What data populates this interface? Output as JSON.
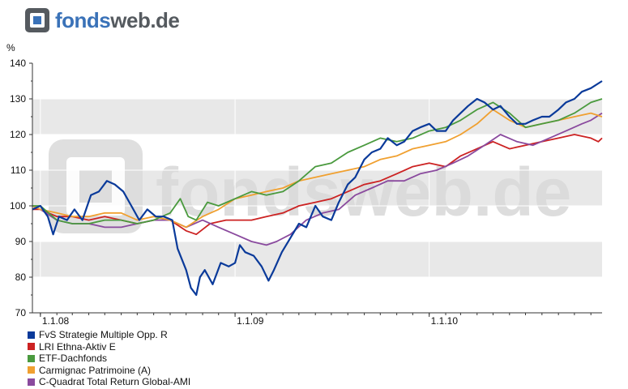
{
  "brand": {
    "part1": "fonds",
    "part2": "web.de",
    "watermark": "fondsweb.de"
  },
  "chart_data": {
    "type": "line",
    "ylabel": "%",
    "ylim": [
      70,
      140
    ],
    "yticks": [
      70,
      80,
      90,
      100,
      110,
      120,
      130,
      140
    ],
    "xlim": [
      "2007-12-17",
      "2010-11-22"
    ],
    "xticks": [
      {
        "label": "1.1.08",
        "date": "2008-01-01"
      },
      {
        "label": "1.1.09",
        "date": "2009-01-01"
      },
      {
        "label": "1.1.10",
        "date": "2010-01-01"
      }
    ],
    "grid": true,
    "legend_position": "bottom",
    "series": [
      {
        "name": "FvS Strategie Multiple Opp. R",
        "color": "#0a3a9a",
        "points": [
          [
            "2007-12-17",
            99
          ],
          [
            "2008-01-01",
            100
          ],
          [
            "2008-01-15",
            97
          ],
          [
            "2008-01-25",
            92
          ],
          [
            "2008-02-05",
            97
          ],
          [
            "2008-02-20",
            96
          ],
          [
            "2008-03-05",
            99
          ],
          [
            "2008-03-20",
            96
          ],
          [
            "2008-04-05",
            103
          ],
          [
            "2008-04-20",
            104
          ],
          [
            "2008-05-05",
            107
          ],
          [
            "2008-05-20",
            106
          ],
          [
            "2008-06-05",
            104
          ],
          [
            "2008-06-20",
            100
          ],
          [
            "2008-07-05",
            96
          ],
          [
            "2008-07-20",
            99
          ],
          [
            "2008-08-05",
            97
          ],
          [
            "2008-08-20",
            97
          ],
          [
            "2008-09-05",
            96
          ],
          [
            "2008-09-15",
            88
          ],
          [
            "2008-10-01",
            82
          ],
          [
            "2008-10-10",
            77
          ],
          [
            "2008-10-20",
            75
          ],
          [
            "2008-10-27",
            80
          ],
          [
            "2008-11-05",
            82
          ],
          [
            "2008-11-20",
            78
          ],
          [
            "2008-12-05",
            84
          ],
          [
            "2008-12-20",
            83
          ],
          [
            "2009-01-01",
            84
          ],
          [
            "2009-01-10",
            89
          ],
          [
            "2009-01-20",
            87
          ],
          [
            "2009-02-05",
            86
          ],
          [
            "2009-02-20",
            83
          ],
          [
            "2009-03-05",
            79
          ],
          [
            "2009-03-15",
            82
          ],
          [
            "2009-03-30",
            87
          ],
          [
            "2009-04-15",
            91
          ],
          [
            "2009-05-01",
            95
          ],
          [
            "2009-05-15",
            94
          ],
          [
            "2009-06-01",
            100
          ],
          [
            "2009-06-15",
            97
          ],
          [
            "2009-07-01",
            96
          ],
          [
            "2009-07-15",
            101
          ],
          [
            "2009-08-01",
            106
          ],
          [
            "2009-08-15",
            108
          ],
          [
            "2009-09-01",
            113
          ],
          [
            "2009-09-15",
            115
          ],
          [
            "2009-10-01",
            116
          ],
          [
            "2009-10-15",
            119
          ],
          [
            "2009-11-01",
            117
          ],
          [
            "2009-11-15",
            118
          ],
          [
            "2009-12-01",
            121
          ],
          [
            "2009-12-15",
            122
          ],
          [
            "2010-01-01",
            123
          ],
          [
            "2010-01-15",
            121
          ],
          [
            "2010-02-01",
            121
          ],
          [
            "2010-02-15",
            124
          ],
          [
            "2010-03-01",
            126
          ],
          [
            "2010-03-15",
            128
          ],
          [
            "2010-04-01",
            130
          ],
          [
            "2010-04-15",
            129
          ],
          [
            "2010-05-01",
            127
          ],
          [
            "2010-05-15",
            128
          ],
          [
            "2010-06-01",
            125
          ],
          [
            "2010-06-15",
            123
          ],
          [
            "2010-07-01",
            123
          ],
          [
            "2010-07-15",
            124
          ],
          [
            "2010-08-01",
            125
          ],
          [
            "2010-08-15",
            125
          ],
          [
            "2010-09-01",
            127
          ],
          [
            "2010-09-15",
            129
          ],
          [
            "2010-10-01",
            130
          ],
          [
            "2010-10-15",
            132
          ],
          [
            "2010-11-01",
            133
          ],
          [
            "2010-11-22",
            135
          ]
        ]
      },
      {
        "name": "LRI Ethna-Aktiv E",
        "color": "#cc2222",
        "points": [
          [
            "2007-12-17",
            99
          ],
          [
            "2008-01-01",
            99
          ],
          [
            "2008-02-01",
            97
          ],
          [
            "2008-03-01",
            97
          ],
          [
            "2008-04-01",
            96
          ],
          [
            "2008-05-01",
            97
          ],
          [
            "2008-06-01",
            96
          ],
          [
            "2008-07-01",
            95
          ],
          [
            "2008-08-01",
            96
          ],
          [
            "2008-09-01",
            96
          ],
          [
            "2008-10-01",
            93
          ],
          [
            "2008-10-20",
            92
          ],
          [
            "2008-11-15",
            95
          ],
          [
            "2008-12-15",
            96
          ],
          [
            "2009-01-01",
            96
          ],
          [
            "2009-02-01",
            96
          ],
          [
            "2009-03-01",
            97
          ],
          [
            "2009-04-01",
            98
          ],
          [
            "2009-05-01",
            100
          ],
          [
            "2009-06-01",
            101
          ],
          [
            "2009-07-01",
            102
          ],
          [
            "2009-08-01",
            104
          ],
          [
            "2009-09-01",
            106
          ],
          [
            "2009-10-01",
            107
          ],
          [
            "2009-11-01",
            109
          ],
          [
            "2009-12-01",
            111
          ],
          [
            "2010-01-01",
            112
          ],
          [
            "2010-02-01",
            111
          ],
          [
            "2010-03-01",
            114
          ],
          [
            "2010-04-01",
            116
          ],
          [
            "2010-05-01",
            118
          ],
          [
            "2010-06-01",
            116
          ],
          [
            "2010-07-01",
            117
          ],
          [
            "2010-08-01",
            118
          ],
          [
            "2010-09-01",
            119
          ],
          [
            "2010-10-01",
            120
          ],
          [
            "2010-11-01",
            119
          ],
          [
            "2010-11-15",
            118
          ],
          [
            "2010-11-22",
            119
          ]
        ]
      },
      {
        "name": "ETF-Dachfonds",
        "color": "#4a9a3e",
        "points": [
          [
            "2007-12-17",
            100
          ],
          [
            "2008-01-01",
            100
          ],
          [
            "2008-02-01",
            96
          ],
          [
            "2008-03-01",
            95
          ],
          [
            "2008-04-01",
            95
          ],
          [
            "2008-05-01",
            96
          ],
          [
            "2008-06-01",
            96
          ],
          [
            "2008-07-01",
            95
          ],
          [
            "2008-08-01",
            96
          ],
          [
            "2008-09-01",
            98
          ],
          [
            "2008-09-20",
            102
          ],
          [
            "2008-10-05",
            97
          ],
          [
            "2008-10-20",
            96
          ],
          [
            "2008-11-10",
            101
          ],
          [
            "2008-12-01",
            100
          ],
          [
            "2009-01-01",
            102
          ],
          [
            "2009-02-01",
            104
          ],
          [
            "2009-03-01",
            103
          ],
          [
            "2009-04-01",
            104
          ],
          [
            "2009-05-01",
            107
          ],
          [
            "2009-06-01",
            111
          ],
          [
            "2009-07-01",
            112
          ],
          [
            "2009-08-01",
            115
          ],
          [
            "2009-09-01",
            117
          ],
          [
            "2009-10-01",
            119
          ],
          [
            "2009-11-01",
            118
          ],
          [
            "2009-12-01",
            119
          ],
          [
            "2010-01-01",
            121
          ],
          [
            "2010-02-01",
            122
          ],
          [
            "2010-03-01",
            124
          ],
          [
            "2010-04-01",
            127
          ],
          [
            "2010-05-01",
            129
          ],
          [
            "2010-06-01",
            126
          ],
          [
            "2010-07-01",
            122
          ],
          [
            "2010-08-01",
            123
          ],
          [
            "2010-09-01",
            124
          ],
          [
            "2010-10-01",
            126
          ],
          [
            "2010-11-01",
            129
          ],
          [
            "2010-11-22",
            130
          ]
        ]
      },
      {
        "name": "Carmignac Patrimoine (A)",
        "color": "#f0a030",
        "points": [
          [
            "2007-12-17",
            100
          ],
          [
            "2008-01-01",
            99
          ],
          [
            "2008-02-01",
            98
          ],
          [
            "2008-03-01",
            97
          ],
          [
            "2008-04-01",
            97
          ],
          [
            "2008-05-01",
            98
          ],
          [
            "2008-06-01",
            98
          ],
          [
            "2008-07-01",
            96
          ],
          [
            "2008-08-01",
            97
          ],
          [
            "2008-09-01",
            96
          ],
          [
            "2008-10-01",
            94
          ],
          [
            "2008-11-01",
            97
          ],
          [
            "2008-12-01",
            99
          ],
          [
            "2009-01-01",
            102
          ],
          [
            "2009-02-01",
            103
          ],
          [
            "2009-03-01",
            104
          ],
          [
            "2009-04-01",
            105
          ],
          [
            "2009-05-01",
            107
          ],
          [
            "2009-06-01",
            108
          ],
          [
            "2009-07-01",
            109
          ],
          [
            "2009-08-01",
            110
          ],
          [
            "2009-09-01",
            111
          ],
          [
            "2009-10-01",
            113
          ],
          [
            "2009-11-01",
            114
          ],
          [
            "2009-12-01",
            116
          ],
          [
            "2010-01-01",
            117
          ],
          [
            "2010-02-01",
            118
          ],
          [
            "2010-03-01",
            120
          ],
          [
            "2010-04-01",
            123
          ],
          [
            "2010-05-01",
            127
          ],
          [
            "2010-06-01",
            124
          ],
          [
            "2010-07-01",
            122
          ],
          [
            "2010-08-01",
            123
          ],
          [
            "2010-09-01",
            124
          ],
          [
            "2010-10-01",
            125
          ],
          [
            "2010-11-01",
            126
          ],
          [
            "2010-11-22",
            125
          ]
        ]
      },
      {
        "name": "C-Quadrat Total Return Global-AMI",
        "color": "#8a4a9e",
        "points": [
          [
            "2007-12-17",
            100
          ],
          [
            "2008-01-01",
            99
          ],
          [
            "2008-02-01",
            96
          ],
          [
            "2008-03-01",
            95
          ],
          [
            "2008-04-01",
            95
          ],
          [
            "2008-05-01",
            94
          ],
          [
            "2008-06-01",
            94
          ],
          [
            "2008-07-01",
            95
          ],
          [
            "2008-08-01",
            96
          ],
          [
            "2008-09-01",
            96
          ],
          [
            "2008-10-01",
            94
          ],
          [
            "2008-11-01",
            96
          ],
          [
            "2008-12-01",
            94
          ],
          [
            "2009-01-01",
            92
          ],
          [
            "2009-02-01",
            90
          ],
          [
            "2009-03-01",
            89
          ],
          [
            "2009-03-20",
            90
          ],
          [
            "2009-04-15",
            92
          ],
          [
            "2009-05-15",
            96
          ],
          [
            "2009-06-15",
            98
          ],
          [
            "2009-07-15",
            99
          ],
          [
            "2009-08-15",
            103
          ],
          [
            "2009-09-15",
            105
          ],
          [
            "2009-10-15",
            107
          ],
          [
            "2009-11-15",
            107
          ],
          [
            "2009-12-15",
            109
          ],
          [
            "2010-01-15",
            110
          ],
          [
            "2010-02-15",
            112
          ],
          [
            "2010-03-15",
            114
          ],
          [
            "2010-04-15",
            117
          ],
          [
            "2010-05-15",
            120
          ],
          [
            "2010-06-15",
            118
          ],
          [
            "2010-07-15",
            117
          ],
          [
            "2010-08-15",
            119
          ],
          [
            "2010-09-15",
            121
          ],
          [
            "2010-10-15",
            123
          ],
          [
            "2010-11-01",
            124
          ],
          [
            "2010-11-22",
            126
          ]
        ]
      }
    ]
  }
}
